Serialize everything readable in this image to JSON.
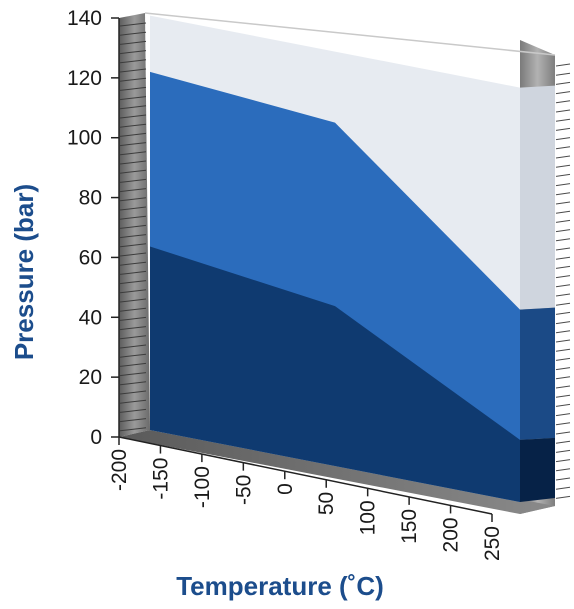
{
  "chart_data": {
    "type": "area",
    "xlabel": "Temperature (˚C)",
    "ylabel": "Pressure (bar)",
    "x_ticks": [
      "-200",
      "-150",
      "-100",
      "-50",
      "0",
      "50",
      "100",
      "150",
      "200",
      "250"
    ],
    "y_ticks": [
      "0",
      "20",
      "40",
      "60",
      "80",
      "100",
      "120",
      "140"
    ],
    "xlim": [
      -200,
      250
    ],
    "ylim": [
      0,
      140
    ],
    "x": [
      -150,
      50,
      250
    ],
    "series": [
      {
        "values": [
          62,
          54,
          21
        ]
      },
      {
        "values": [
          121,
          116,
          65
        ]
      },
      {
        "values": [
          140,
          140,
          140
        ]
      }
    ],
    "grid": false,
    "legend": "none",
    "colors": {
      "band_low": "#0f3a70",
      "band_mid": "#2b6cbc",
      "band_top": "#e7ebf1",
      "axis_title": "#1c4d8c",
      "wall": "#8a8a8a",
      "floor": "#6f6f6f"
    }
  }
}
